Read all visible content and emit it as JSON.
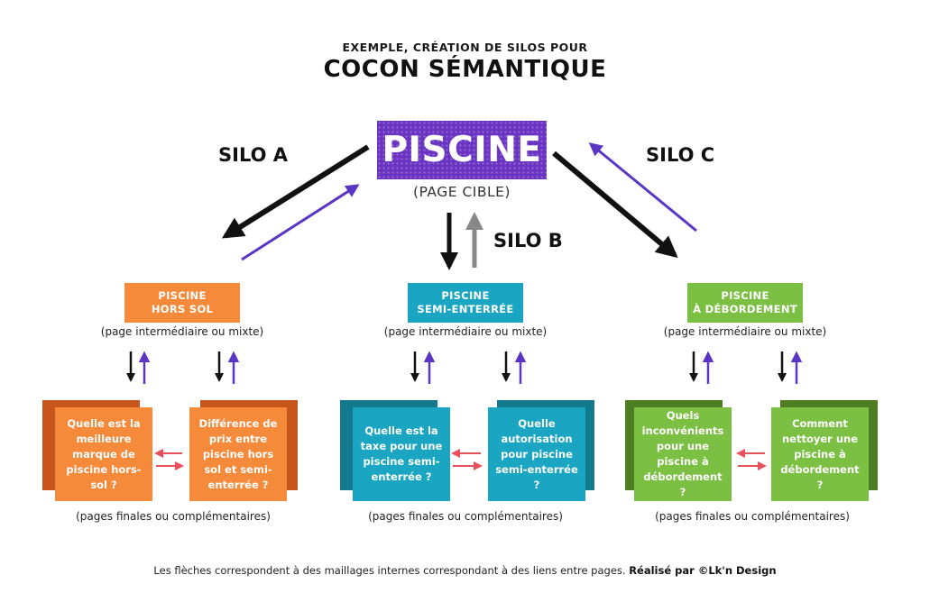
{
  "header": {
    "subtitle": "EXEMPLE, CRÉATION DE SILOS POUR",
    "title": "COCON SÉMANTIQUE"
  },
  "target": {
    "label": "PISCINE",
    "sublabel": "(PAGE CIBLE)"
  },
  "silos": [
    {
      "label": "SILO A",
      "color": "#f58a3b",
      "back_color": "#c8561c",
      "category_lines": [
        "PISCINE",
        "HORS SOL"
      ],
      "category_note": "(page intermédiaire ou mixte)",
      "leaves": [
        "Quelle est la meilleure marque de piscine hors-sol ?",
        "Différence de prix entre piscine hors sol et semi-enterrée ?"
      ],
      "leaves_note": "(pages finales ou complémentaires)"
    },
    {
      "label": "SILO B",
      "color": "#1aa5c2",
      "back_color": "#137a8e",
      "category_lines": [
        "PISCINE",
        "SEMI-ENTERRÉE"
      ],
      "category_note": "(page intermédiaire ou mixte)",
      "leaves": [
        "Quelle est la taxe pour une piscine semi-enterrée ?",
        "Quelle autorisation pour piscine semi-enterrée ?"
      ],
      "leaves_note": "(pages finales ou complémentaires)"
    },
    {
      "label": "SILO C",
      "color": "#7bc043",
      "back_color": "#4d7f22",
      "category_lines": [
        "PISCINE",
        "À DÉBORDEMENT"
      ],
      "category_note": "(page intermédiaire ou mixte)",
      "leaves": [
        "Quels inconvénients pour une piscine à débordement ?",
        "Comment nettoyer une piscine à débordement ?"
      ],
      "leaves_note": "(pages finales ou complémentaires)"
    }
  ],
  "footer": {
    "text": "Les flèches correspondent à des maillages internes correspondant à des liens entre pages.",
    "credit": "Réalisé par ©Lk'n Design"
  },
  "colors": {
    "target": "#6a33c2",
    "arrow_down": "#111111",
    "arrow_up": "#5b35c4",
    "arrow_up_silo_b": "#888888",
    "arrow_horizontal": "#e8505b"
  }
}
